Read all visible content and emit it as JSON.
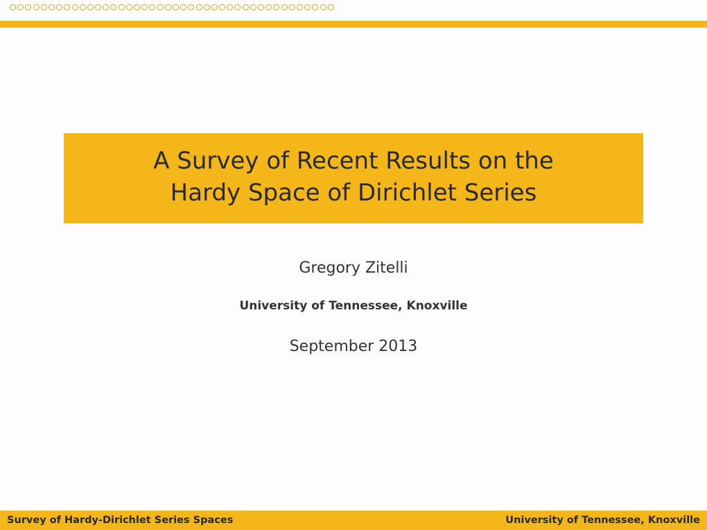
{
  "theme": {
    "accent": "#f4b619",
    "accent_border": "#e1a514",
    "background": "#fdfdfd",
    "text": "#333333"
  },
  "nav": {
    "circle_count": 42
  },
  "title": {
    "line1": "A Survey of Recent Results on the",
    "line2": "Hardy Space of Dirichlet Series"
  },
  "author": "Gregory Zitelli",
  "affiliation": "University of Tennessee, Knoxville",
  "date": "September 2013",
  "footer": {
    "left": "Survey of Hardy-Dirichlet Series Spaces",
    "right": "University of Tennessee, Knoxville"
  }
}
